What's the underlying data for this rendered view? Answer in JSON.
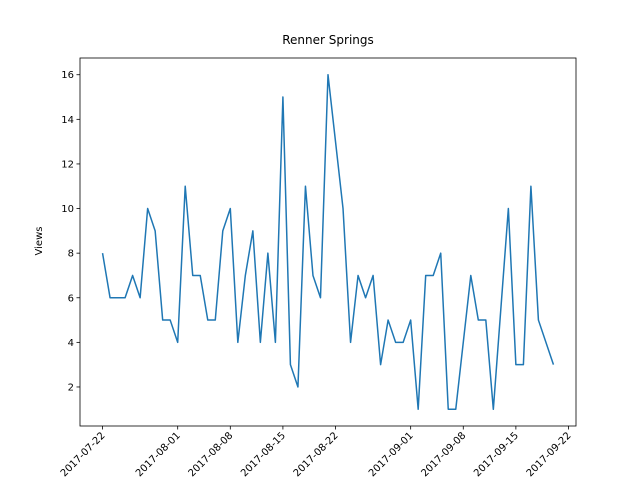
{
  "chart_data": {
    "type": "line",
    "title": "Renner Springs",
    "ylabel": "Views",
    "x": [
      "2017-07-22",
      "2017-07-23",
      "2017-07-24",
      "2017-07-25",
      "2017-07-26",
      "2017-07-27",
      "2017-07-28",
      "2017-07-29",
      "2017-07-30",
      "2017-07-31",
      "2017-08-01",
      "2017-08-02",
      "2017-08-03",
      "2017-08-04",
      "2017-08-05",
      "2017-08-06",
      "2017-08-07",
      "2017-08-08",
      "2017-08-09",
      "2017-08-10",
      "2017-08-11",
      "2017-08-12",
      "2017-08-13",
      "2017-08-14",
      "2017-08-15",
      "2017-08-16",
      "2017-08-17",
      "2017-08-18",
      "2017-08-19",
      "2017-08-20",
      "2017-08-21",
      "2017-08-23",
      "2017-08-24",
      "2017-08-25",
      "2017-08-26",
      "2017-08-27",
      "2017-08-28",
      "2017-08-29",
      "2017-08-30",
      "2017-08-31",
      "2017-09-01",
      "2017-09-02",
      "2017-09-03",
      "2017-09-04",
      "2017-09-05",
      "2017-09-06",
      "2017-09-07",
      "2017-09-09",
      "2017-09-10",
      "2017-09-11",
      "2017-09-12",
      "2017-09-14",
      "2017-09-15",
      "2017-09-16",
      "2017-09-17",
      "2017-09-18",
      "2017-09-20"
    ],
    "series": [
      {
        "name": "Views",
        "color": "#1f77b4",
        "values": [
          8,
          6,
          6,
          6,
          7,
          6,
          10,
          9,
          5,
          5,
          4,
          11,
          7,
          7,
          5,
          5,
          9,
          10,
          4,
          7,
          9,
          4,
          8,
          4,
          15,
          3,
          2,
          11,
          7,
          6,
          16,
          10,
          4,
          7,
          6,
          7,
          3,
          5,
          4,
          4,
          5,
          1,
          7,
          7,
          8,
          1,
          1,
          7,
          5,
          5,
          1,
          10,
          3,
          3,
          11,
          5,
          3
        ]
      }
    ],
    "xlim": [
      "2017-07-19",
      "2017-09-23"
    ],
    "xticks": [
      "2017-07-22",
      "2017-08-01",
      "2017-08-08",
      "2017-08-15",
      "2017-08-22",
      "2017-09-01",
      "2017-09-08",
      "2017-09-15",
      "2017-09-22"
    ],
    "ylim": [
      0.25,
      16.75
    ],
    "yticks": [
      2,
      4,
      6,
      8,
      10,
      12,
      14,
      16
    ]
  }
}
